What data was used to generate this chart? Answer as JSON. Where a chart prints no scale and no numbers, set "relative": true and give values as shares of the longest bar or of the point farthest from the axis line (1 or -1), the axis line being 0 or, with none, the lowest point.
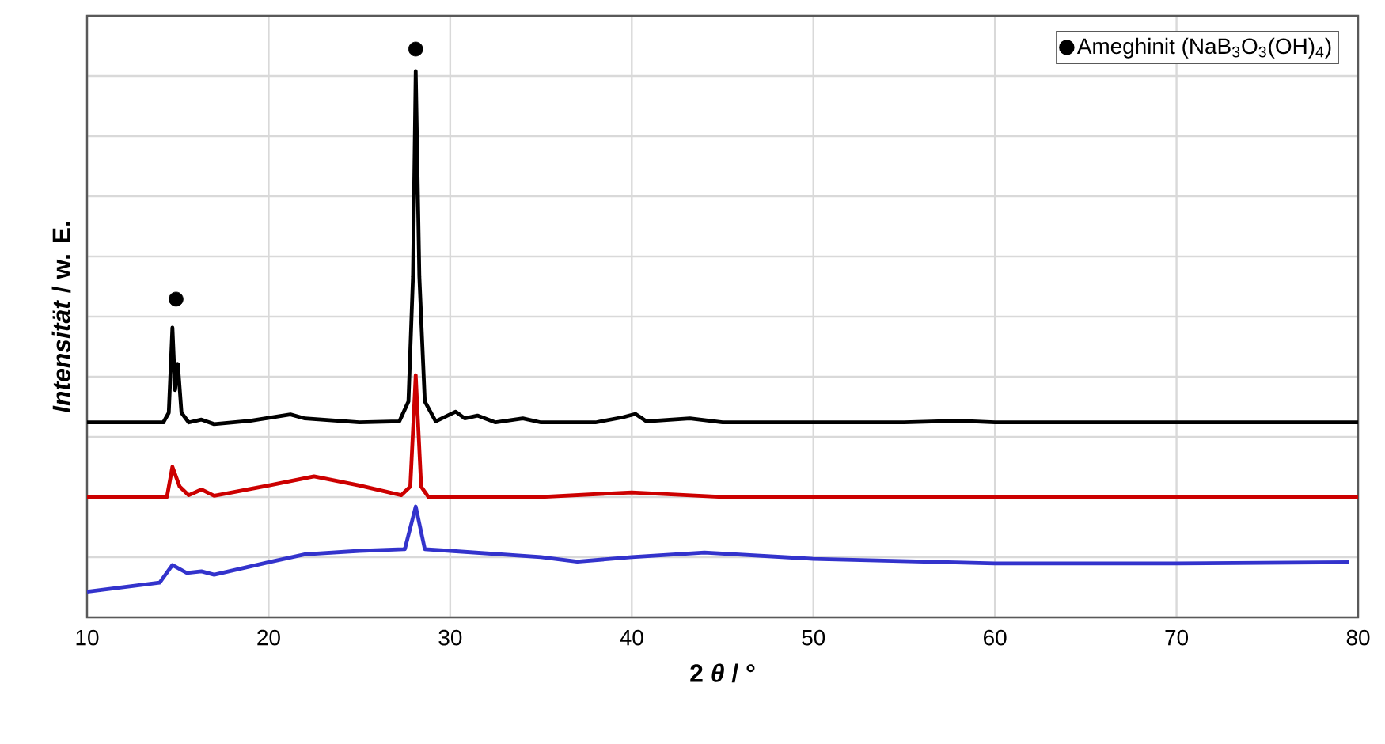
{
  "chart_data": {
    "type": "line",
    "relative": true,
    "xlabel": "2 *θ* / °",
    "ylabel": "*Intensität* / w. E.",
    "xlim": [
      10,
      80
    ],
    "xticks": [
      10,
      20,
      30,
      40,
      50,
      60,
      70,
      80
    ],
    "grid": true,
    "legend": "top right",
    "tick_labels": "x",
    "marker": "none",
    "line_style": "solid",
    "series": [
      {
        "color": "#000000",
        "x": [
          10,
          14.2,
          14.5,
          14.7,
          14.85,
          15.0,
          15.2,
          15.6,
          16.3,
          17,
          19,
          21.2,
          22,
          25,
          27.2,
          27.7,
          27.95,
          28.1,
          28.3,
          28.6,
          29.2,
          30.3,
          30.8,
          31.5,
          32.5,
          34,
          35,
          38,
          39.5,
          40.2,
          40.8,
          43.2,
          45,
          55,
          58,
          60,
          80
        ],
        "values": [
          0.343,
          0.343,
          0.36,
          0.51,
          0.4,
          0.446,
          0.36,
          0.343,
          0.348,
          0.34,
          0.346,
          0.357,
          0.35,
          0.343,
          0.345,
          0.38,
          0.6,
          0.961,
          0.6,
          0.38,
          0.345,
          0.362,
          0.35,
          0.355,
          0.343,
          0.35,
          0.343,
          0.343,
          0.352,
          0.358,
          0.345,
          0.35,
          0.343,
          0.343,
          0.346,
          0.343,
          0.343
        ]
      },
      {
        "color": "#cc0000",
        "x": [
          10,
          14.4,
          14.7,
          15.1,
          15.6,
          16.3,
          17,
          20,
          22.5,
          25,
          27.3,
          27.8,
          28.1,
          28.4,
          28.8,
          35,
          40,
          45,
          80
        ],
        "values": [
          0.212,
          0.212,
          0.265,
          0.23,
          0.215,
          0.225,
          0.214,
          0.232,
          0.248,
          0.232,
          0.215,
          0.23,
          0.426,
          0.23,
          0.212,
          0.212,
          0.22,
          0.212,
          0.212
        ]
      },
      {
        "color": "#3333cc",
        "x": [
          10,
          14,
          14.7,
          15.5,
          16.3,
          17,
          20,
          22,
          25,
          27.5,
          28.1,
          28.6,
          30,
          35,
          37,
          40,
          44,
          50,
          60,
          70,
          79.5
        ],
        "values": [
          0.045,
          0.061,
          0.092,
          0.078,
          0.081,
          0.075,
          0.097,
          0.111,
          0.117,
          0.12,
          0.195,
          0.12,
          0.117,
          0.106,
          0.098,
          0.106,
          0.114,
          0.103,
          0.095,
          0.095,
          0.097
        ]
      },
      {
        "type": "scatter",
        "name": "Ameghinit (NaB$_{3}$O$_{3}$(OH)$_{4}$)",
        "color": "#000000",
        "marker": "circle",
        "x": [
          14.9,
          28.1
        ],
        "values": [
          0.56,
          1
        ]
      }
    ]
  }
}
